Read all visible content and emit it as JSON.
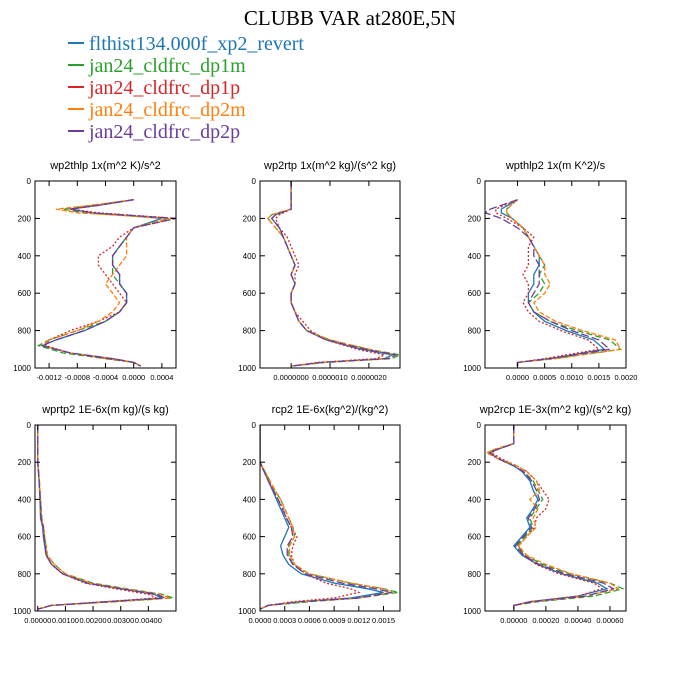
{
  "figure": {
    "title": "CLUBB VAR at280E,5N"
  },
  "legend": [
    {
      "name": "flthist134.000f_xp2_revert",
      "color": "#1f77b4",
      "dash": "solid"
    },
    {
      "name": "jan24_cldfrc_dp1m",
      "color": "#2ca02c",
      "dash": "6,3"
    },
    {
      "name": "jan24_cldfrc_dp1p",
      "color": "#d62728",
      "dash": "2,2"
    },
    {
      "name": "jan24_cldfrc_dp2m",
      "color": "#ff7f0e",
      "dash": "5,2"
    },
    {
      "name": "jan24_cldfrc_dp2p",
      "color": "#6a3d9a",
      "dash": "8,3"
    }
  ],
  "chart_data": [
    {
      "type": "line",
      "title": "wp2thlp  1x(m^2 K)/s^2",
      "xlim": [
        -0.0014,
        0.0006
      ],
      "ylim": [
        0,
        1000
      ],
      "y_inverted": true,
      "xticks": [
        -0.0012,
        -0.0008,
        -0.0004,
        0.0,
        0.0004
      ],
      "xtick_labels": [
        "-0.0012",
        "-0.0008",
        "-0.0004",
        "0.0000",
        "0.0004"
      ],
      "yticks": [
        0,
        200,
        400,
        600,
        800,
        1000
      ],
      "y": [
        100,
        130,
        150,
        170,
        200,
        250,
        300,
        350,
        400,
        450,
        500,
        550,
        600,
        650,
        700,
        750,
        800,
        850,
        880,
        920,
        950,
        970,
        990
      ],
      "series": [
        {
          "x": [
            0.0,
            -0.0005,
            -0.0009,
            -0.0006,
            0.0004,
            0.0,
            -0.0001,
            -0.0002,
            -0.0003,
            -0.0003,
            -0.0002,
            -0.0002,
            -0.0001,
            -0.0001,
            -0.0002,
            -0.0004,
            -0.0007,
            -0.0011,
            -0.0013,
            -0.0009,
            -0.0003,
            0.0,
            0.0001
          ]
        },
        {
          "x": [
            0.0,
            -0.0006,
            -0.001,
            -0.0007,
            0.0005,
            0.0,
            -0.0001,
            -0.0002,
            -0.0003,
            -0.0003,
            -0.0003,
            -0.0002,
            -0.0001,
            -0.0001,
            -0.0002,
            -0.0004,
            -0.0008,
            -0.0012,
            -0.00135,
            -0.001,
            -0.0004,
            0.0,
            0.0001
          ]
        },
        {
          "x": [
            0.0,
            -0.0005,
            -0.0009,
            -0.0005,
            0.0006,
            0.0,
            -0.0002,
            -0.0003,
            -0.0005,
            -0.0005,
            -0.0004,
            -0.0003,
            -0.0002,
            -0.0001,
            -0.0002,
            -0.0005,
            -0.0009,
            -0.0012,
            -0.00125,
            -0.0009,
            -0.0004,
            0.0,
            0.0001
          ]
        },
        {
          "x": [
            0.0,
            -0.0006,
            -0.0011,
            -0.0008,
            0.0005,
            0.0,
            -0.0001,
            -0.0001,
            -0.0001,
            -0.0002,
            -0.0003,
            -0.0004,
            -0.0003,
            -0.0002,
            -0.0003,
            -0.0005,
            -0.0008,
            -0.0012,
            -0.0013,
            -0.0009,
            -0.0003,
            0.0,
            0.0001
          ]
        },
        {
          "x": [
            0.0,
            -0.0005,
            -0.0009,
            -0.0006,
            0.0006,
            0.0,
            -0.0001,
            -0.0002,
            -0.0003,
            -0.0003,
            -0.0002,
            -0.0002,
            -0.0001,
            -0.0001,
            -0.0002,
            -0.0004,
            -0.0007,
            -0.0011,
            -0.0013,
            -0.0009,
            -0.0003,
            0.0,
            0.0001
          ]
        }
      ]
    },
    {
      "type": "line",
      "title": "wp2rtp  1x(m^2 kg)/(s^2 kg)",
      "xlim": [
        -8e-07,
        2.8e-06
      ],
      "ylim": [
        0,
        1000
      ],
      "y_inverted": true,
      "xticks": [
        0.0,
        1e-06,
        2e-06
      ],
      "xtick_labels": [
        "0.0000000",
        "0.0000010",
        "0.0000020"
      ],
      "yticks": [
        0,
        200,
        400,
        600,
        800,
        1000
      ],
      "y": [
        0,
        150,
        180,
        200,
        250,
        300,
        400,
        450,
        500,
        550,
        600,
        650,
        700,
        750,
        800,
        850,
        900,
        930,
        950,
        970,
        990
      ],
      "series": [
        {
          "x": [
            0.0,
            0.0,
            -4e-07,
            -5e-07,
            -3e-07,
            -2e-07,
            0.0,
            1e-07,
            0.0,
            1e-07,
            0.0,
            0.0,
            1e-07,
            2e-07,
            4e-07,
            9e-07,
            1.8e-06,
            2.6e-06,
            2.4e-06,
            8e-07,
            0.0
          ]
        },
        {
          "x": [
            0.0,
            0.0,
            -5e-07,
            -6e-07,
            -4e-07,
            -2e-07,
            0.0,
            1e-07,
            0.0,
            1e-07,
            0.0,
            0.0,
            1e-07,
            2e-07,
            4e-07,
            1e-06,
            2e-06,
            2.8e-06,
            2.6e-06,
            9e-07,
            0.0
          ]
        },
        {
          "x": [
            0.0,
            0.0,
            -3e-07,
            -4e-07,
            -3e-07,
            -1e-07,
            1e-07,
            2e-07,
            1e-07,
            1e-07,
            0.0,
            0.0,
            1e-07,
            3e-07,
            5e-07,
            9e-07,
            1.7e-06,
            2.4e-06,
            2.2e-06,
            7e-07,
            0.0
          ]
        },
        {
          "x": [
            0.0,
            0.0,
            -5e-07,
            -6e-07,
            -4e-07,
            -2e-07,
            0.0,
            1e-07,
            0.0,
            1e-07,
            0.0,
            0.0,
            1e-07,
            2e-07,
            4e-07,
            1e-06,
            2e-06,
            2.7e-06,
            2.5e-06,
            8e-07,
            0.0
          ]
        },
        {
          "x": [
            0.0,
            0.0,
            -4e-07,
            -5e-07,
            -3e-07,
            -2e-07,
            0.0,
            1e-07,
            0.0,
            1e-07,
            0.0,
            0.0,
            1e-07,
            2e-07,
            4e-07,
            9e-07,
            1.9e-06,
            2.7e-06,
            2.5e-06,
            8e-07,
            0.0
          ]
        }
      ]
    },
    {
      "type": "line",
      "title": "wpthlp2  1x(m K^2)/s",
      "xlim": [
        -0.0006,
        0.002
      ],
      "ylim": [
        0,
        1000
      ],
      "y_inverted": true,
      "xticks": [
        0.0,
        0.0005,
        0.001,
        0.0015,
        0.002
      ],
      "xtick_labels": [
        "0.0000",
        "0.0005",
        "0.0010",
        "0.0015",
        "0.0020"
      ],
      "yticks": [
        0,
        200,
        400,
        600,
        800,
        1000
      ],
      "y": [
        100,
        150,
        170,
        200,
        250,
        300,
        350,
        400,
        450,
        500,
        550,
        600,
        650,
        700,
        750,
        800,
        850,
        900,
        950,
        970,
        990
      ],
      "series": [
        {
          "x": [
            0.0,
            -0.0003,
            -0.0003,
            -0.0001,
            0.0001,
            0.0002,
            0.0003,
            0.0004,
            0.0004,
            0.0003,
            0.0003,
            0.0002,
            0.0002,
            0.0003,
            0.0005,
            0.0009,
            0.0014,
            0.0016,
            0.0006,
            0.0,
            0.0
          ]
        },
        {
          "x": [
            0.0,
            -0.0002,
            -0.0002,
            -0.0001,
            0.0001,
            0.0002,
            0.0003,
            0.0004,
            0.0005,
            0.0004,
            0.0005,
            0.0004,
            0.0002,
            0.0003,
            0.0006,
            0.0011,
            0.0017,
            0.0019,
            0.0007,
            0.0,
            0.0
          ]
        },
        {
          "x": [
            0.0,
            -0.0004,
            -0.0004,
            -0.0002,
            0.0001,
            0.0003,
            0.0002,
            0.0002,
            0.0002,
            0.0001,
            0.0002,
            0.0002,
            0.0001,
            0.0002,
            0.0004,
            0.0008,
            0.0013,
            0.0015,
            0.0005,
            0.0,
            0.0
          ]
        },
        {
          "x": [
            0.0,
            -0.0002,
            -0.0002,
            -0.0001,
            0.0001,
            0.0002,
            0.0003,
            0.0004,
            0.0005,
            0.0005,
            0.0006,
            0.0005,
            0.0003,
            0.0004,
            0.0007,
            0.0012,
            0.0018,
            0.0019,
            0.0007,
            0.0,
            0.0
          ]
        },
        {
          "x": [
            0.0,
            -0.0005,
            -0.0006,
            -0.0003,
            0.0,
            0.0002,
            0.0003,
            0.0003,
            0.0004,
            0.0004,
            0.0004,
            0.0003,
            0.0002,
            0.0003,
            0.0006,
            0.001,
            0.0015,
            0.0017,
            0.0006,
            0.0,
            0.0
          ]
        }
      ]
    },
    {
      "type": "line",
      "title": "wprtp2  1E-6x(m kg)/(s kg)",
      "xlim": [
        -0.0001,
        0.005
      ],
      "ylim": [
        0,
        1000
      ],
      "y_inverted": true,
      "xticks": [
        0.0,
        0.001,
        0.002,
        0.003,
        0.004
      ],
      "xtick_labels": [
        "0.00000",
        "0.00100",
        "0.00200",
        "0.00300",
        "0.00400"
      ],
      "yticks": [
        0,
        200,
        400,
        600,
        800,
        1000
      ],
      "y": [
        0,
        100,
        200,
        300,
        400,
        500,
        550,
        600,
        650,
        700,
        750,
        800,
        850,
        880,
        910,
        930,
        950,
        970,
        990
      ],
      "series": [
        {
          "x": [
            0.0,
            0.0,
            0.0,
            5e-05,
            8e-05,
            0.0001,
            0.00018,
            0.0002,
            0.00025,
            0.0003,
            0.0005,
            0.0009,
            0.0018,
            0.003,
            0.0042,
            0.0045,
            0.0025,
            0.0005,
            0.0
          ]
        },
        {
          "x": [
            0.0,
            0.0,
            0.0,
            6e-05,
            0.0001,
            0.00015,
            0.0002,
            0.00025,
            0.0003,
            0.00035,
            0.0006,
            0.001,
            0.002,
            0.0032,
            0.0045,
            0.0049,
            0.0028,
            0.0005,
            0.0
          ]
        },
        {
          "x": [
            0.0,
            0.0,
            0.0,
            5e-05,
            8e-05,
            0.00012,
            0.0002,
            0.00022,
            0.00028,
            0.0003,
            0.0005,
            0.0009,
            0.0017,
            0.0028,
            0.004,
            0.0043,
            0.0024,
            0.0005,
            0.0
          ]
        },
        {
          "x": [
            0.0,
            0.0,
            0.0,
            6e-05,
            0.0001,
            0.00014,
            0.00022,
            0.00025,
            0.0003,
            0.00035,
            0.0006,
            0.001,
            0.0019,
            0.0031,
            0.0044,
            0.0048,
            0.0027,
            0.0005,
            0.0
          ]
        },
        {
          "x": [
            0.0,
            0.0,
            0.0,
            5e-05,
            9e-05,
            0.00012,
            0.0002,
            0.00022,
            0.00028,
            0.0003,
            0.0005,
            0.0009,
            0.0018,
            0.003,
            0.0043,
            0.0046,
            0.0026,
            0.0005,
            0.0
          ]
        }
      ]
    },
    {
      "type": "line",
      "title": "rcp2  1E-6x(kg^2)/(kg^2)",
      "xlim": [
        0.0,
        0.0017
      ],
      "ylim": [
        0,
        1000
      ],
      "y_inverted": true,
      "xticks": [
        0.0,
        0.0003,
        0.0006,
        0.0009,
        0.0012,
        0.0015
      ],
      "xtick_labels": [
        "0.0000",
        "0.0003",
        "0.0006",
        "0.0009",
        "0.0012",
        "0.0015"
      ],
      "yticks": [
        0,
        200,
        400,
        600,
        800,
        1000
      ],
      "y": [
        0,
        200,
        250,
        300,
        350,
        400,
        450,
        500,
        550,
        600,
        650,
        700,
        750,
        800,
        850,
        880,
        900,
        930,
        950,
        970,
        990
      ],
      "series": [
        {
          "x": [
            0.0,
            0.0,
            5e-05,
            0.0001,
            0.00015,
            0.0002,
            0.00025,
            0.0003,
            0.00035,
            0.0003,
            0.00025,
            0.00028,
            0.00035,
            0.0005,
            0.0009,
            0.0013,
            0.0015,
            0.0011,
            0.0005,
            0.0001,
            0.0
          ]
        },
        {
          "x": [
            0.0,
            0.0,
            6e-05,
            0.00012,
            0.00018,
            0.00025,
            0.0003,
            0.00035,
            0.0004,
            0.00042,
            0.00035,
            0.00035,
            0.0004,
            0.0006,
            0.0011,
            0.0015,
            0.00168,
            0.0012,
            0.0006,
            0.0001,
            0.0
          ]
        },
        {
          "x": [
            0.0,
            0.0,
            5e-05,
            0.00011,
            0.00016,
            0.00022,
            0.00028,
            0.00032,
            0.00038,
            0.00045,
            0.0004,
            0.00038,
            0.00042,
            0.00055,
            0.0008,
            0.0011,
            0.0012,
            0.0009,
            0.0004,
            0.0001,
            0.0
          ]
        },
        {
          "x": [
            0.0,
            0.0,
            6e-05,
            0.00012,
            0.00018,
            0.00025,
            0.0003,
            0.00035,
            0.0004,
            0.00042,
            0.00036,
            0.00036,
            0.00042,
            0.0006,
            0.0011,
            0.0015,
            0.0016,
            0.0012,
            0.0005,
            0.0001,
            0.0
          ]
        },
        {
          "x": [
            0.0,
            0.0,
            5e-05,
            0.0001,
            0.00016,
            0.00022,
            0.00027,
            0.00032,
            0.00038,
            0.0004,
            0.00033,
            0.00033,
            0.0004,
            0.00055,
            0.001,
            0.0014,
            0.0016,
            0.0012,
            0.0005,
            0.0001,
            0.0
          ]
        }
      ]
    },
    {
      "type": "line",
      "title": "wp2rcp  1E-3x(m^2 kg)/(s^2 kg)",
      "xlim": [
        -0.00018,
        0.0007
      ],
      "ylim": [
        0,
        1000
      ],
      "y_inverted": true,
      "xticks": [
        0.0,
        0.0002,
        0.0004,
        0.0006
      ],
      "xtick_labels": [
        "0.00000",
        "0.00020",
        "0.00040",
        "0.00060"
      ],
      "yticks": [
        0,
        200,
        400,
        600,
        800,
        1000
      ],
      "y": [
        0,
        100,
        130,
        150,
        180,
        220,
        250,
        300,
        350,
        400,
        450,
        500,
        550,
        600,
        650,
        700,
        750,
        800,
        850,
        880,
        920,
        950,
        970,
        990
      ],
      "series": [
        {
          "x": [
            0.0,
            0.0,
            -0.0001,
            -0.00015,
            -0.0001,
            0.0,
            5e-05,
            0.0001,
            0.00012,
            0.00015,
            0.00012,
            8e-05,
            0.0001,
            5e-05,
            0.0,
            5e-05,
            0.00015,
            0.0003,
            0.00052,
            0.00058,
            0.0004,
            0.0001,
            0.0,
            0.0
          ]
        },
        {
          "x": [
            0.0,
            0.0,
            -0.00012,
            -0.00016,
            -0.0001,
            0.0,
            6e-05,
            0.00012,
            0.00015,
            0.00018,
            0.00014,
            0.0001,
            0.00012,
            7e-05,
            2e-05,
            7e-05,
            0.00018,
            0.00035,
            0.0006,
            0.00068,
            0.0005,
            0.00015,
            0.0,
            0.0
          ]
        },
        {
          "x": [
            0.0,
            0.0,
            -0.0001,
            -0.00014,
            -8e-05,
            2e-05,
            8e-05,
            0.00014,
            0.00018,
            0.00022,
            0.0002,
            0.00014,
            0.00013,
            8e-05,
            3e-05,
            6e-05,
            0.00014,
            0.00028,
            0.0005,
            0.00055,
            0.0004,
            0.0001,
            0.0,
            0.0
          ]
        },
        {
          "x": [
            0.0,
            0.0,
            -0.00012,
            -0.00017,
            -0.0001,
            2e-05,
            8e-05,
            0.00014,
            0.00016,
            0.0001,
            0.00015,
            0.00012,
            0.00014,
            8e-05,
            3e-05,
            8e-05,
            0.0002,
            0.00036,
            0.0006,
            0.00065,
            0.00045,
            0.00012,
            0.0,
            0.0
          ]
        },
        {
          "x": [
            0.0,
            0.0,
            -0.0001,
            -0.00015,
            -0.0001,
            0.0,
            6e-05,
            0.00011,
            0.00014,
            0.00016,
            0.00013,
            9e-05,
            0.00011,
            6e-05,
            1e-05,
            6e-05,
            0.00016,
            0.00032,
            0.00056,
            0.00062,
            0.00045,
            0.00012,
            0.0,
            0.0
          ]
        }
      ]
    }
  ]
}
